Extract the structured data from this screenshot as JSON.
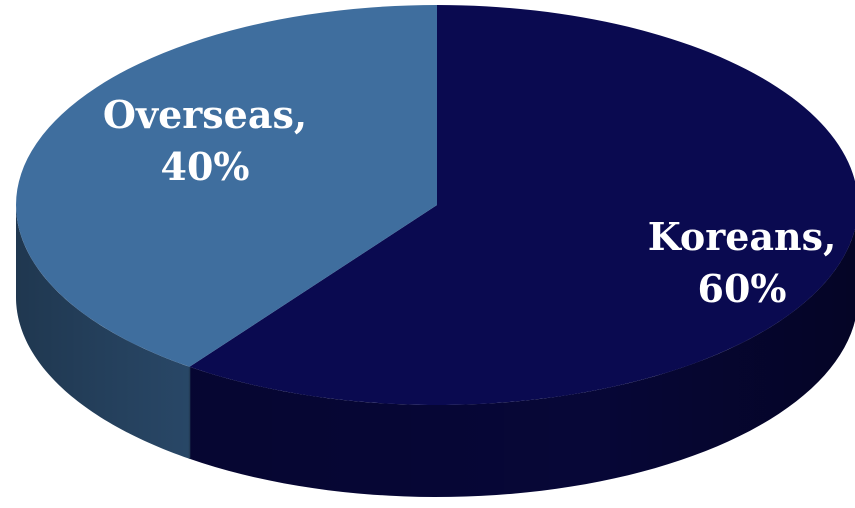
{
  "chart_data": {
    "type": "pie",
    "style": "3d",
    "slices": [
      {
        "label": "Overseas",
        "value": 40,
        "label_line1": "Overseas,",
        "label_line2": "40%",
        "color": "#3F6E9E"
      },
      {
        "label": "Koreans",
        "value": 60,
        "label_line1": "Koreans,",
        "label_line2": "60%",
        "color": "#0A0A50"
      }
    ],
    "title": "",
    "legend": "none"
  }
}
